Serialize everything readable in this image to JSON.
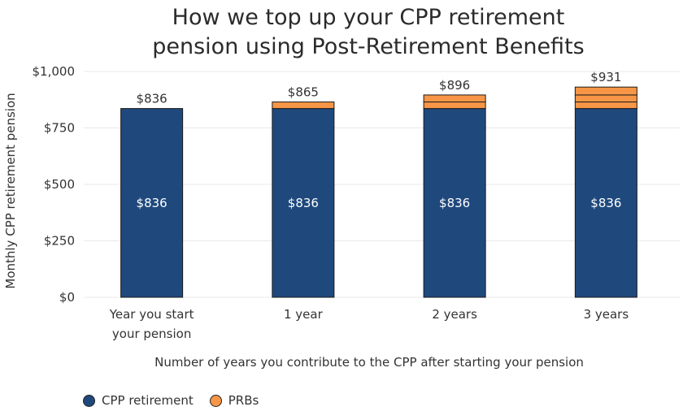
{
  "chart_data": {
    "type": "bar",
    "stacked": true,
    "title_lines": [
      "How we top up your CPP retirement",
      "pension using Post-Retirement Benefits"
    ],
    "xlabel": "Number of years you contribute to the CPP after starting your pension",
    "ylabel": "Monthly CPP retirement pension",
    "ylim": [
      0,
      1000
    ],
    "yticks": [
      0,
      250,
      500,
      750,
      1000
    ],
    "ytick_labels": [
      "$0",
      "$250",
      "$500",
      "$750",
      "$1,000"
    ],
    "categories": [
      [
        "Year you start",
        "your pension"
      ],
      [
        "1 year"
      ],
      [
        "2 years"
      ],
      [
        "3 years"
      ]
    ],
    "base": {
      "name": "CPP retirement",
      "color": "#1f497d",
      "values": [
        836,
        836,
        836,
        836
      ],
      "labels": [
        "$836",
        "$836",
        "$836",
        "$836"
      ]
    },
    "prb_segments": [
      [],
      [
        29
      ],
      [
        29,
        31
      ],
      [
        29,
        31,
        35
      ]
    ],
    "prb_name": "PRBs",
    "prb_color": "#f79646",
    "totals": [
      836,
      865,
      896,
      931
    ],
    "total_labels": [
      "$836",
      "$865",
      "$896",
      "$931"
    ],
    "grid": true,
    "legend_position": "bottom-left"
  }
}
